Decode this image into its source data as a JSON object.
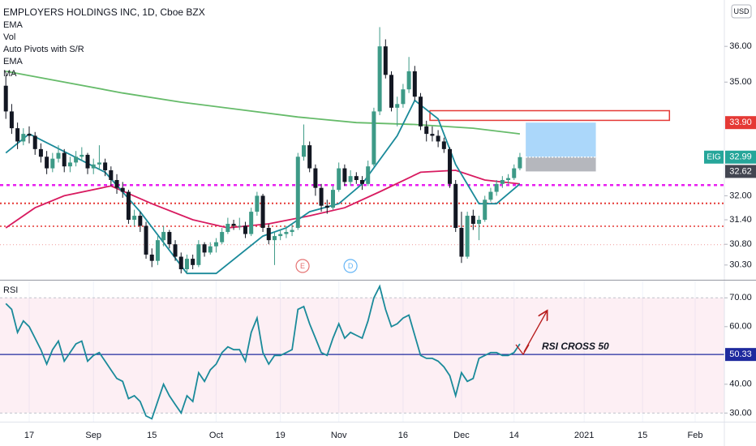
{
  "chart_data": [
    {
      "type": "candlestick",
      "title": "EMPLOYERS HOLDINGS INC, 1D, Cboe BZX",
      "currency": "USD",
      "legend": [
        "EMA",
        "Vol",
        "Auto Pivots with S/R",
        "EMA",
        "MA"
      ],
      "up_color": "#3d9a87",
      "down_color": "#131722",
      "xlim": [
        -1,
        123
      ],
      "ylim": [
        29.95,
        37.34
      ],
      "log_scale": true,
      "yticks": [
        {
          "value": 36,
          "label": "36.00"
        },
        {
          "value": 35,
          "label": "35.00"
        },
        {
          "value": 32,
          "label": "32.00"
        },
        {
          "value": 31.4,
          "label": "31.40"
        },
        {
          "value": 30.8,
          "label": "30.80"
        },
        {
          "value": 30.3,
          "label": "30.30"
        }
      ],
      "ohlc": [
        [
          34.9,
          35.2,
          34.0,
          34.2
        ],
        [
          34.2,
          34.4,
          33.6,
          33.75
        ],
        [
          33.75,
          33.9,
          33.2,
          33.4
        ],
        [
          33.4,
          33.75,
          33.3,
          33.6
        ],
        [
          33.6,
          33.8,
          33.35,
          33.55
        ],
        [
          33.55,
          33.65,
          33.05,
          33.2
        ],
        [
          33.2,
          33.35,
          32.85,
          33.0
        ],
        [
          33.0,
          33.15,
          32.55,
          32.7
        ],
        [
          32.7,
          33.1,
          32.6,
          32.95
        ],
        [
          32.95,
          33.3,
          32.85,
          33.1
        ],
        [
          33.1,
          33.2,
          32.6,
          32.75
        ],
        [
          32.75,
          33.0,
          32.6,
          32.85
        ],
        [
          32.85,
          33.15,
          32.75,
          33.0
        ],
        [
          33.0,
          33.25,
          32.9,
          33.05
        ],
        [
          33.05,
          33.1,
          32.55,
          32.7
        ],
        [
          32.7,
          32.95,
          32.55,
          32.8
        ],
        [
          32.8,
          33.3,
          32.65,
          32.85
        ],
        [
          32.85,
          32.95,
          32.5,
          32.65
        ],
        [
          32.65,
          32.75,
          32.25,
          32.4
        ],
        [
          32.4,
          32.55,
          32.05,
          32.2
        ],
        [
          32.2,
          32.35,
          31.95,
          32.1
        ],
        [
          32.1,
          32.15,
          31.3,
          31.4
        ],
        [
          31.4,
          31.65,
          31.25,
          31.5
        ],
        [
          31.5,
          31.6,
          31.1,
          31.25
        ],
        [
          31.25,
          31.35,
          30.45,
          30.55
        ],
        [
          30.55,
          30.7,
          30.25,
          30.4
        ],
        [
          30.4,
          31.0,
          30.3,
          30.9
        ],
        [
          30.9,
          31.25,
          30.75,
          31.1
        ],
        [
          31.1,
          31.15,
          30.7,
          30.8
        ],
        [
          30.8,
          30.9,
          30.4,
          30.5
        ],
        [
          30.5,
          30.6,
          30.1,
          30.2
        ],
        [
          30.2,
          30.55,
          30.1,
          30.45
        ],
        [
          30.45,
          30.55,
          30.2,
          30.3
        ],
        [
          30.3,
          30.9,
          30.25,
          30.8
        ],
        [
          30.8,
          30.85,
          30.5,
          30.6
        ],
        [
          30.6,
          30.85,
          30.55,
          30.75
        ],
        [
          30.75,
          30.95,
          30.6,
          30.85
        ],
        [
          30.85,
          31.2,
          30.8,
          31.1
        ],
        [
          31.1,
          31.45,
          31.05,
          31.3
        ],
        [
          31.3,
          31.4,
          31.15,
          31.25
        ],
        [
          31.25,
          31.45,
          31.15,
          31.25
        ],
        [
          31.25,
          31.35,
          30.95,
          31.05
        ],
        [
          31.05,
          31.7,
          31.0,
          31.6
        ],
        [
          31.6,
          32.1,
          31.5,
          32.0
        ],
        [
          32.0,
          32.05,
          31.1,
          31.2
        ],
        [
          31.2,
          31.3,
          30.8,
          30.9
        ],
        [
          30.9,
          31.1,
          30.3,
          31.0
        ],
        [
          31.0,
          31.15,
          30.9,
          31.05
        ],
        [
          31.05,
          31.25,
          30.95,
          31.1
        ],
        [
          31.1,
          31.3,
          31.0,
          31.15
        ],
        [
          31.2,
          33.1,
          31.15,
          33.0
        ],
        [
          33.0,
          33.85,
          32.9,
          33.3
        ],
        [
          33.3,
          33.4,
          32.6,
          32.7
        ],
        [
          32.7,
          32.8,
          32.0,
          32.2
        ],
        [
          32.2,
          32.3,
          31.6,
          31.75
        ],
        [
          31.75,
          31.9,
          31.55,
          31.7
        ],
        [
          31.7,
          32.25,
          31.65,
          32.15
        ],
        [
          32.15,
          32.85,
          32.1,
          32.7
        ],
        [
          32.7,
          32.8,
          32.25,
          32.35
        ],
        [
          32.35,
          32.65,
          32.25,
          32.5
        ],
        [
          32.5,
          32.6,
          32.3,
          32.4
        ],
        [
          32.4,
          32.5,
          32.15,
          32.3
        ],
        [
          32.3,
          32.9,
          32.25,
          32.75
        ],
        [
          32.8,
          34.3,
          32.75,
          34.2
        ],
        [
          34.2,
          36.55,
          34.1,
          36.0
        ],
        [
          36.0,
          36.2,
          35.1,
          35.2
        ],
        [
          35.2,
          35.3,
          34.2,
          34.3
        ],
        [
          34.3,
          34.6,
          33.8,
          34.4
        ],
        [
          34.4,
          34.95,
          34.3,
          34.8
        ],
        [
          34.8,
          35.7,
          34.7,
          35.3
        ],
        [
          35.3,
          35.45,
          34.5,
          34.6
        ],
        [
          34.6,
          34.7,
          33.7,
          33.8
        ],
        [
          33.8,
          33.95,
          33.4,
          33.6
        ],
        [
          33.6,
          33.8,
          33.4,
          33.55
        ],
        [
          33.55,
          33.7,
          33.25,
          33.4
        ],
        [
          33.4,
          33.5,
          33.1,
          33.2
        ],
        [
          33.2,
          33.25,
          32.2,
          32.3
        ],
        [
          32.3,
          32.4,
          31.1,
          31.2
        ],
        [
          31.2,
          31.6,
          30.35,
          30.5
        ],
        [
          30.5,
          31.6,
          30.45,
          31.5
        ],
        [
          31.5,
          31.65,
          31.15,
          31.3
        ],
        [
          31.3,
          31.5,
          30.9,
          31.4
        ],
        [
          31.4,
          32.0,
          31.35,
          31.9
        ],
        [
          31.9,
          32.2,
          31.85,
          32.1
        ],
        [
          32.1,
          32.4,
          32.0,
          32.3
        ],
        [
          32.3,
          32.5,
          32.2,
          32.4
        ],
        [
          32.4,
          32.55,
          32.3,
          32.45
        ],
        [
          32.45,
          32.8,
          32.4,
          32.7
        ],
        [
          32.7,
          33.1,
          32.65,
          32.99
        ]
      ],
      "indicator_lines": [
        {
          "color": "#66bb6a",
          "x": [
            0,
            10,
            20,
            30,
            40,
            50,
            60,
            70,
            80,
            88
          ],
          "values": [
            35.3,
            35.0,
            34.7,
            34.45,
            34.25,
            34.05,
            33.9,
            33.85,
            33.75,
            33.6
          ]
        },
        {
          "color": "#d81b60",
          "x": [
            0,
            5,
            10,
            18,
            25,
            32,
            38,
            45,
            52,
            58,
            64,
            71,
            77,
            82,
            88
          ],
          "values": [
            31.2,
            31.7,
            32.0,
            32.25,
            31.8,
            31.4,
            31.2,
            31.3,
            31.5,
            31.7,
            32.1,
            32.6,
            32.65,
            32.4,
            32.3
          ]
        },
        {
          "color": "#1a8a9a",
          "x": [
            0,
            4,
            17,
            23,
            31,
            36,
            44,
            48,
            52,
            57,
            61,
            67,
            70,
            74,
            77,
            81,
            84,
            88
          ],
          "values": [
            33.1,
            33.6,
            32.6,
            31.6,
            30.1,
            30.1,
            31.0,
            31.2,
            31.6,
            31.8,
            32.3,
            33.55,
            34.5,
            34.0,
            32.8,
            31.8,
            31.8,
            32.3
          ]
        }
      ],
      "levels": [
        {
          "value": 32.27,
          "color": "#e91ef0",
          "dash": "4 4",
          "width": 2.5
        },
        {
          "value": 31.81,
          "color": "#e53935",
          "dash": "2 3",
          "width": 2
        },
        {
          "value": 31.24,
          "color": "#e53935",
          "dash": "2 3",
          "width": 1.5
        },
        {
          "value": 30.79,
          "color": "#ef9a9a",
          "dash": "1 3",
          "width": 1
        }
      ],
      "resistance_box": {
        "x": [
          72.6,
          113.6
        ],
        "top": 34.22,
        "bottom": 33.96,
        "color": "#e53935"
      },
      "position": {
        "x": [
          89,
          101
        ],
        "target": 33.9,
        "entry": 32.99,
        "stop": 32.62
      },
      "price_labels": [
        {
          "value": 33.9,
          "label": "33.90",
          "color": "#e53935"
        },
        {
          "value": 32.99,
          "label": "32.99",
          "symbol": "EIG",
          "color": "#26a69a"
        },
        {
          "value": 32.62,
          "label": "32.62",
          "color": "#434651"
        }
      ],
      "events": [
        {
          "label": "E",
          "x": 50.8,
          "color": "#e57373"
        },
        {
          "label": "D",
          "x": 59,
          "color": "#64b5f6"
        }
      ]
    },
    {
      "type": "line",
      "title": "RSI",
      "color": "#1a8a9a",
      "xlim": [
        -1,
        123
      ],
      "xticks": [
        {
          "value": 4,
          "label": "17"
        },
        {
          "value": 15,
          "label": "Sep"
        },
        {
          "value": 25,
          "label": "15"
        },
        {
          "value": 36,
          "label": "Oct"
        },
        {
          "value": 47,
          "label": "19"
        },
        {
          "value": 57,
          "label": "Nov"
        },
        {
          "value": 68,
          "label": "16"
        },
        {
          "value": 78,
          "label": "Dec"
        },
        {
          "value": 87,
          "label": "14"
        },
        {
          "value": 99,
          "label": "2021"
        },
        {
          "value": 109,
          "label": "15"
        },
        {
          "value": 118,
          "label": "Feb"
        }
      ],
      "ylim": [
        27,
        76
      ],
      "yticks": [
        {
          "value": 70,
          "label": "70.00"
        },
        {
          "value": 60,
          "label": "60.00"
        },
        {
          "value": 40,
          "label": "40.00"
        },
        {
          "value": 30,
          "label": "30.00"
        }
      ],
      "band": [
        30,
        70
      ],
      "level": {
        "value": 50.33,
        "label": "50.33",
        "color": "#1e2a9e"
      },
      "annotation": "RSI CROSS 50",
      "values": [
        68,
        66,
        58,
        62,
        60,
        56,
        52,
        47,
        52,
        55,
        48,
        51,
        54,
        55,
        48,
        50,
        51,
        48,
        45,
        42,
        41,
        35,
        36,
        34,
        29,
        28,
        34,
        40,
        36,
        33,
        30,
        36,
        34,
        44,
        41,
        45,
        47,
        51,
        53,
        52,
        52,
        48,
        58,
        63,
        51,
        47,
        50,
        50,
        51,
        52,
        66,
        67,
        61,
        56,
        51,
        50,
        56,
        61,
        56,
        58,
        57,
        56,
        62,
        70,
        74,
        66,
        60,
        61,
        63,
        64,
        57,
        50,
        49,
        49,
        48,
        46,
        43,
        36,
        44,
        41,
        42,
        49,
        50,
        51,
        51,
        50,
        50,
        51,
        54
      ]
    }
  ]
}
